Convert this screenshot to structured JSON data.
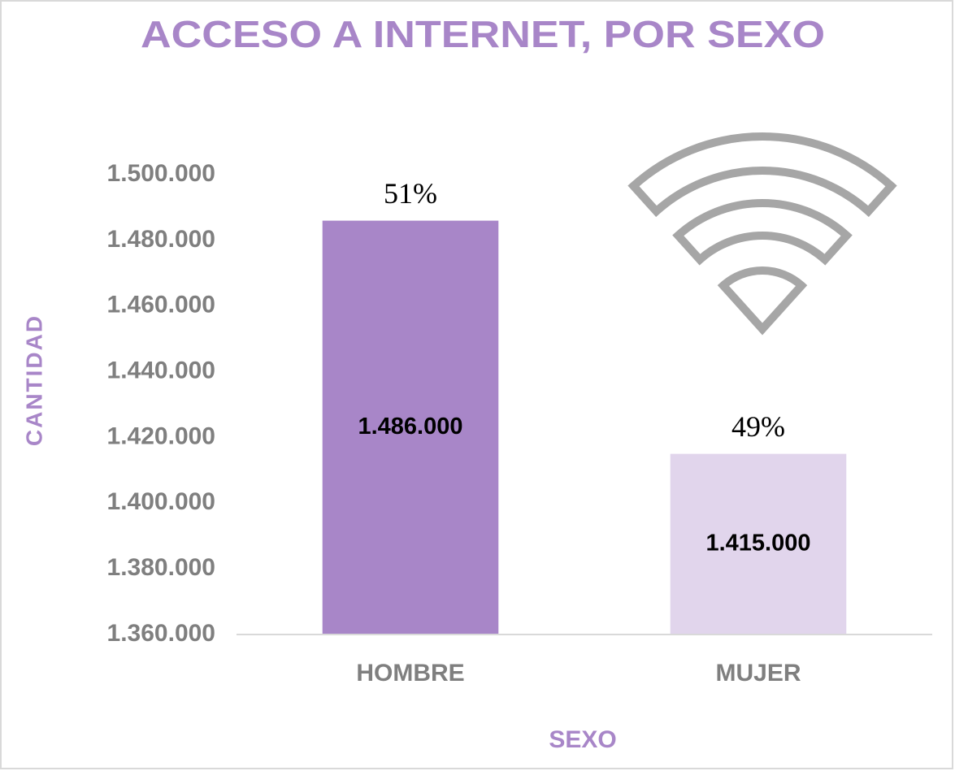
{
  "chart_data": {
    "type": "bar",
    "title": "ACCESO A INTERNET, POR SEXO",
    "x_label": "SEXO",
    "y_label": "CANTIDAD",
    "categories": [
      "HOMBRE",
      "MUJER"
    ],
    "values": [
      1486000,
      1415000
    ],
    "value_labels": [
      "1.486.000",
      "1.415.000"
    ],
    "share_labels": [
      "51%",
      "49%"
    ],
    "colors": [
      "#a886c8",
      "#e1d5ec"
    ],
    "ylim": [
      1360000,
      1500000
    ],
    "yticks": [
      {
        "value": 1360000,
        "label": "1.360.000"
      },
      {
        "value": 1380000,
        "label": "1.380.000"
      },
      {
        "value": 1400000,
        "label": "1.400.000"
      },
      {
        "value": 1420000,
        "label": "1.420.000"
      },
      {
        "value": 1440000,
        "label": "1.440.000"
      },
      {
        "value": 1460000,
        "label": "1.460.000"
      },
      {
        "value": 1480000,
        "label": "1.480.000"
      },
      {
        "value": 1500000,
        "label": "1.500.000"
      }
    ],
    "grid": false
  }
}
